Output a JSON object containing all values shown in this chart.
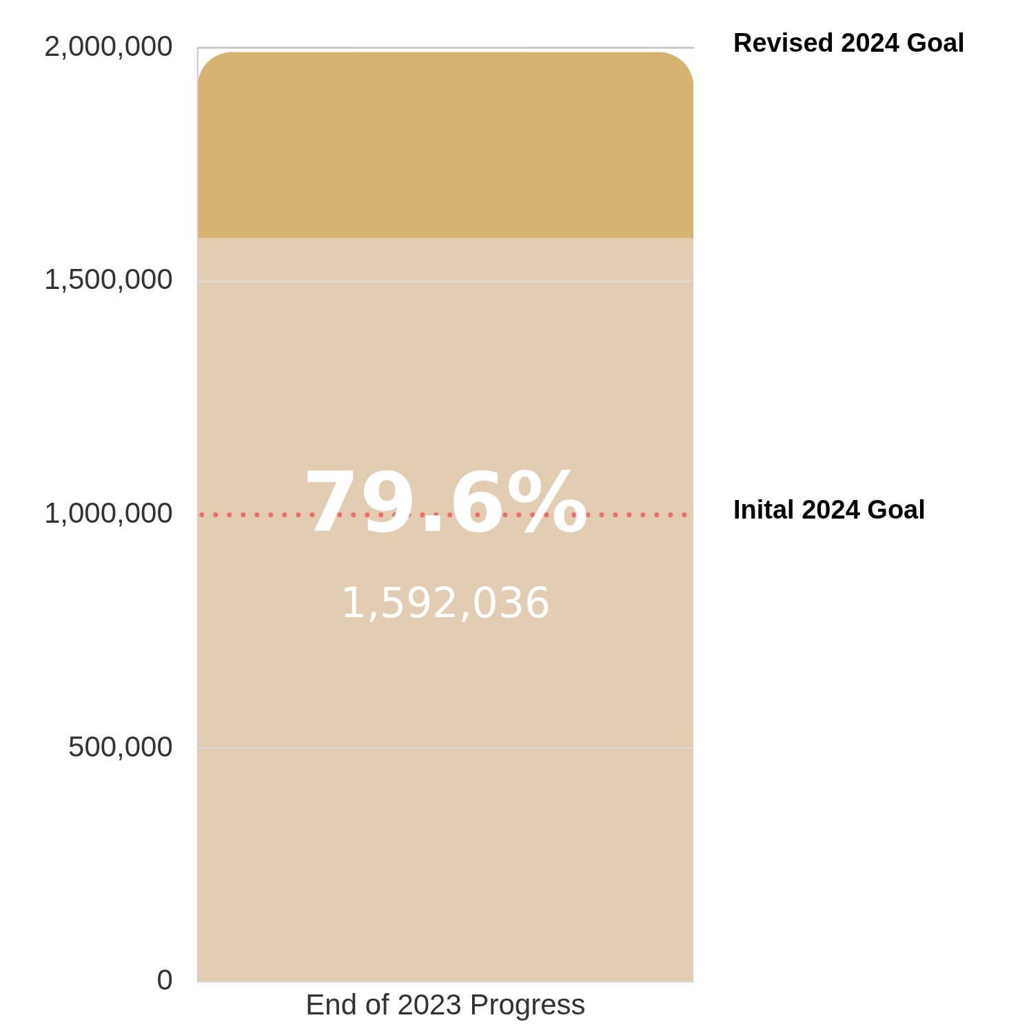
{
  "chart_data": {
    "type": "bar",
    "stacked": true,
    "categories": [
      "End of 2023 Progress"
    ],
    "series": [
      {
        "color": "#e2cdb3",
        "values": [
          1592036
        ],
        "value_labels": [
          "1,592,036"
        ]
      },
      {
        "color": "#d6b370",
        "values": [
          398000
        ]
      }
    ],
    "ylim": [
      0,
      2000000
    ],
    "yticks": [
      {
        "value": 0,
        "label": "0"
      },
      {
        "value": 500000,
        "label": "500,000"
      },
      {
        "value": 1000000,
        "label": "1,000,000"
      },
      {
        "value": 1500000,
        "label": "1,500,000"
      },
      {
        "value": 2000000,
        "label": "2,000,000"
      }
    ],
    "grid": "y",
    "ref_lines": [
      {
        "axis": "y",
        "value": 1000000,
        "label": "Inital 2024 Goal",
        "color": "#f06a6a",
        "line_style": "dotted"
      },
      {
        "axis": "y",
        "value": 2000000,
        "label": "Revised 2024 Goal",
        "color": "#c8c8c8",
        "line_style": "solid"
      }
    ],
    "annotations": [
      "79.6%"
    ]
  }
}
